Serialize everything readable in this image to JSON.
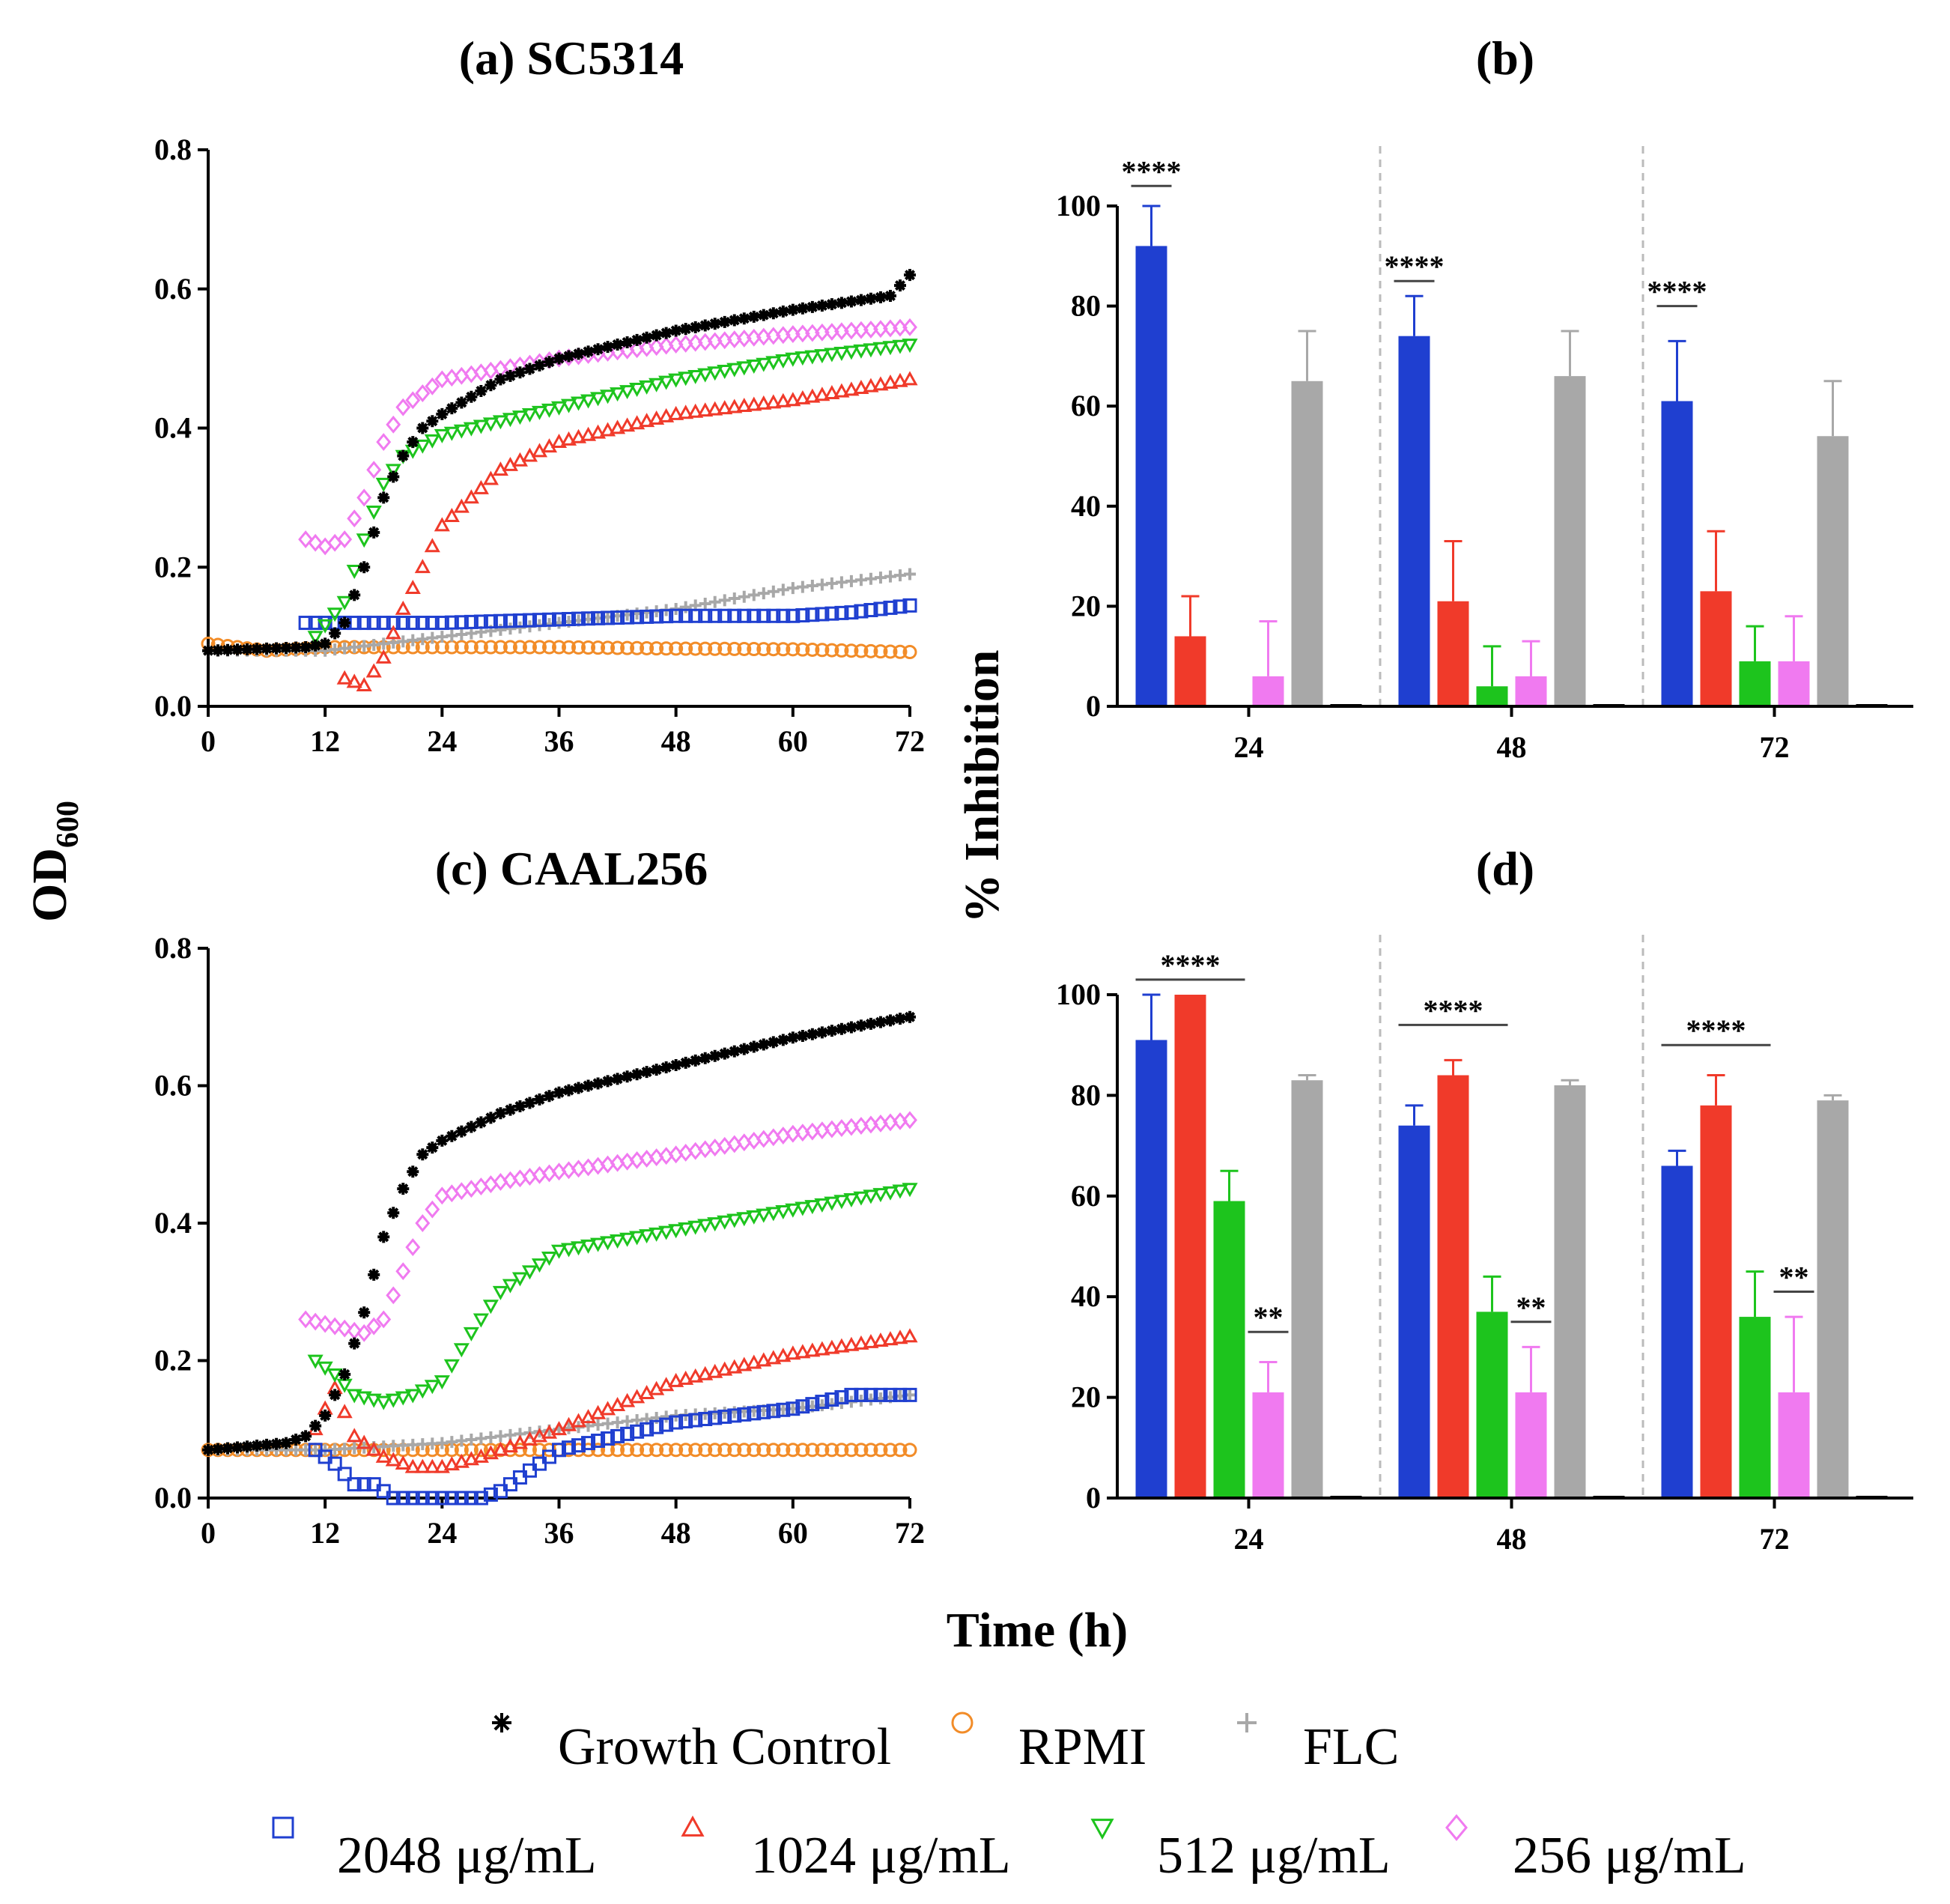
{
  "figure": {
    "shared_y_label_left": "OD",
    "shared_y_label_left_sub": "600",
    "shared_y_label_right": "% Inhibition",
    "shared_x_label": "Time (h)"
  },
  "legend": {
    "items": [
      {
        "key": "gc",
        "label": "Growth Control",
        "symbol": "*",
        "color": "#000000"
      },
      {
        "key": "rpmi",
        "label": "RPMI",
        "symbol": "circle",
        "color": "#F28C28"
      },
      {
        "key": "flc",
        "label": "FLC",
        "symbol": "plus",
        "color": "#A8A8A8"
      },
      {
        "key": "c2048",
        "label": "2048 μg/mL",
        "symbol": "square",
        "color": "#1F3FD0"
      },
      {
        "key": "c1024",
        "label": "1024 μg/mL",
        "symbol": "triangle",
        "color": "#F03A2A"
      },
      {
        "key": "c512",
        "label": "512 μg/mL",
        "symbol": "triangle-down",
        "color": "#1DC41D"
      },
      {
        "key": "c256",
        "label": "256 μg/mL",
        "symbol": "diamond",
        "color": "#F07AF0"
      }
    ]
  },
  "chart_data": [
    {
      "id": "a",
      "type": "scatter",
      "title": "(a) SC5314",
      "xlim": [
        0,
        72
      ],
      "ylim": [
        0,
        0.8
      ],
      "xticks": [
        "0",
        "12",
        "24",
        "36",
        "48",
        "60",
        "72"
      ],
      "yticks": [
        "0.0",
        "0.2",
        "0.4",
        "0.6",
        "0.8"
      ],
      "series": [
        {
          "key": "gc",
          "start": 0,
          "points": [
            [
              0,
              0.08
            ],
            [
              10,
              0.085
            ],
            [
              12,
              0.09
            ],
            [
              14,
              0.12
            ],
            [
              16,
              0.2
            ],
            [
              18,
              0.3
            ],
            [
              20,
              0.36
            ],
            [
              22,
              0.4
            ],
            [
              24,
              0.42
            ],
            [
              30,
              0.47
            ],
            [
              36,
              0.5
            ],
            [
              48,
              0.54
            ],
            [
              60,
              0.57
            ],
            [
              70,
              0.59
            ],
            [
              72,
              0.62
            ]
          ]
        },
        {
          "key": "rpmi",
          "start": 0,
          "points": [
            [
              0,
              0.09
            ],
            [
              6,
              0.08
            ],
            [
              12,
              0.085
            ],
            [
              24,
              0.085
            ],
            [
              36,
              0.085
            ],
            [
              48,
              0.083
            ],
            [
              60,
              0.082
            ],
            [
              72,
              0.078
            ]
          ]
        },
        {
          "key": "flc",
          "start": 0,
          "points": [
            [
              0,
              0.08
            ],
            [
              12,
              0.08
            ],
            [
              24,
              0.1
            ],
            [
              36,
              0.12
            ],
            [
              48,
              0.14
            ],
            [
              60,
              0.17
            ],
            [
              72,
              0.19
            ]
          ]
        },
        {
          "key": "c2048",
          "start": 10,
          "points": [
            [
              10,
              0.12
            ],
            [
              14,
              0.12
            ],
            [
              24,
              0.12
            ],
            [
              36,
              0.125
            ],
            [
              48,
              0.13
            ],
            [
              60,
              0.13
            ],
            [
              66,
              0.135
            ],
            [
              72,
              0.145
            ]
          ]
        },
        {
          "key": "c1024",
          "start": 14,
          "points": [
            [
              14,
              0.04
            ],
            [
              16,
              0.03
            ],
            [
              18,
              0.07
            ],
            [
              20,
              0.14
            ],
            [
              22,
              0.2
            ],
            [
              24,
              0.26
            ],
            [
              30,
              0.34
            ],
            [
              36,
              0.38
            ],
            [
              48,
              0.42
            ],
            [
              60,
              0.44
            ],
            [
              72,
              0.47
            ]
          ]
        },
        {
          "key": "c512",
          "start": 11,
          "points": [
            [
              11,
              0.1
            ],
            [
              14,
              0.15
            ],
            [
              16,
              0.24
            ],
            [
              18,
              0.32
            ],
            [
              20,
              0.36
            ],
            [
              24,
              0.39
            ],
            [
              36,
              0.43
            ],
            [
              48,
              0.47
            ],
            [
              60,
              0.5
            ],
            [
              72,
              0.52
            ]
          ]
        },
        {
          "key": "c256",
          "start": 10,
          "points": [
            [
              10,
              0.24
            ],
            [
              12,
              0.23
            ],
            [
              14,
              0.24
            ],
            [
              16,
              0.3
            ],
            [
              18,
              0.38
            ],
            [
              20,
              0.43
            ],
            [
              24,
              0.47
            ],
            [
              36,
              0.5
            ],
            [
              48,
              0.52
            ],
            [
              60,
              0.535
            ],
            [
              72,
              0.545
            ]
          ]
        }
      ]
    },
    {
      "id": "b",
      "type": "bar",
      "title": "(b)",
      "categories": [
        "24",
        "48",
        "72"
      ],
      "ylim": [
        0,
        100
      ],
      "yticks": [
        "0",
        "20",
        "40",
        "60",
        "80",
        "100"
      ],
      "series": [
        {
          "key": "c2048",
          "values": [
            92,
            74,
            61
          ],
          "errors": [
            8,
            8,
            12
          ]
        },
        {
          "key": "c1024",
          "values": [
            14,
            21,
            23
          ],
          "errors": [
            8,
            12,
            12
          ]
        },
        {
          "key": "c512",
          "values": [
            0,
            4,
            9
          ],
          "errors": [
            0,
            8,
            7
          ]
        },
        {
          "key": "c256",
          "values": [
            6,
            6,
            9
          ],
          "errors": [
            11,
            7,
            9
          ]
        },
        {
          "key": "flc",
          "values": [
            65,
            66,
            54
          ],
          "errors": [
            10,
            9,
            11
          ]
        },
        {
          "key": "gc",
          "values": [
            0,
            0,
            0
          ],
          "errors": [
            0,
            0,
            0
          ]
        }
      ],
      "significance": [
        {
          "category": 0,
          "from": 0,
          "to": 0,
          "label": "****",
          "y": 104
        },
        {
          "category": 1,
          "from": 0,
          "to": 0,
          "label": "****",
          "y": 85
        },
        {
          "category": 2,
          "from": 0,
          "to": 0,
          "label": "****",
          "y": 80
        }
      ]
    },
    {
      "id": "c",
      "type": "scatter",
      "title": "(c) CAAL256",
      "xlim": [
        0,
        72
      ],
      "ylim": [
        0,
        0.8
      ],
      "xticks": [
        "0",
        "12",
        "24",
        "36",
        "48",
        "60",
        "72"
      ],
      "yticks": [
        "0.0",
        "0.2",
        "0.4",
        "0.6",
        "0.8"
      ],
      "series": [
        {
          "key": "gc",
          "start": 0,
          "points": [
            [
              0,
              0.07
            ],
            [
              8,
              0.08
            ],
            [
              10,
              0.09
            ],
            [
              12,
              0.12
            ],
            [
              14,
              0.18
            ],
            [
              16,
              0.27
            ],
            [
              18,
              0.38
            ],
            [
              20,
              0.45
            ],
            [
              22,
              0.5
            ],
            [
              24,
              0.52
            ],
            [
              30,
              0.56
            ],
            [
              36,
              0.59
            ],
            [
              48,
              0.63
            ],
            [
              60,
              0.67
            ],
            [
              72,
              0.7
            ]
          ]
        },
        {
          "key": "rpmi",
          "start": 0,
          "points": [
            [
              0,
              0.07
            ],
            [
              12,
              0.07
            ],
            [
              24,
              0.07
            ],
            [
              36,
              0.07
            ],
            [
              48,
              0.07
            ],
            [
              60,
              0.07
            ],
            [
              72,
              0.07
            ]
          ]
        },
        {
          "key": "flc",
          "start": 0,
          "points": [
            [
              0,
              0.07
            ],
            [
              12,
              0.07
            ],
            [
              24,
              0.08
            ],
            [
              36,
              0.1
            ],
            [
              48,
              0.12
            ],
            [
              60,
              0.13
            ],
            [
              72,
              0.15
            ]
          ]
        },
        {
          "key": "c2048",
          "start": 11,
          "points": [
            [
              11,
              0.07
            ],
            [
              13,
              0.05
            ],
            [
              15,
              0.02
            ],
            [
              17,
              0.02
            ],
            [
              19,
              0.0
            ],
            [
              22,
              0.0
            ],
            [
              26,
              0.0
            ],
            [
              28,
              0.0
            ],
            [
              30,
              0.01
            ],
            [
              33,
              0.04
            ],
            [
              36,
              0.07
            ],
            [
              42,
              0.09
            ],
            [
              48,
              0.11
            ],
            [
              60,
              0.13
            ],
            [
              66,
              0.15
            ],
            [
              72,
              0.15
            ]
          ]
        },
        {
          "key": "c1024",
          "start": 11,
          "points": [
            [
              11,
              0.1
            ],
            [
              13,
              0.16
            ],
            [
              15,
              0.09
            ],
            [
              18,
              0.06
            ],
            [
              21,
              0.045
            ],
            [
              24,
              0.045
            ],
            [
              28,
              0.06
            ],
            [
              32,
              0.08
            ],
            [
              36,
              0.1
            ],
            [
              48,
              0.17
            ],
            [
              60,
              0.21
            ],
            [
              72,
              0.235
            ]
          ]
        },
        {
          "key": "c512",
          "start": 11,
          "points": [
            [
              11,
              0.2
            ],
            [
              13,
              0.18
            ],
            [
              15,
              0.15
            ],
            [
              18,
              0.14
            ],
            [
              21,
              0.15
            ],
            [
              24,
              0.17
            ],
            [
              27,
              0.24
            ],
            [
              30,
              0.3
            ],
            [
              36,
              0.36
            ],
            [
              48,
              0.39
            ],
            [
              60,
              0.42
            ],
            [
              72,
              0.45
            ]
          ]
        },
        {
          "key": "c256",
          "start": 10,
          "points": [
            [
              10,
              0.26
            ],
            [
              13,
              0.25
            ],
            [
              16,
              0.24
            ],
            [
              18,
              0.26
            ],
            [
              20,
              0.33
            ],
            [
              22,
              0.4
            ],
            [
              24,
              0.44
            ],
            [
              30,
              0.46
            ],
            [
              36,
              0.475
            ],
            [
              48,
              0.5
            ],
            [
              60,
              0.53
            ],
            [
              72,
              0.55
            ]
          ]
        }
      ]
    },
    {
      "id": "d",
      "type": "bar",
      "title": "(d)",
      "categories": [
        "24",
        "48",
        "72"
      ],
      "ylim": [
        0,
        100
      ],
      "yticks": [
        "0",
        "20",
        "40",
        "60",
        "80",
        "100"
      ],
      "series": [
        {
          "key": "c2048",
          "values": [
            91,
            74,
            66
          ],
          "errors": [
            9,
            4,
            3
          ]
        },
        {
          "key": "c1024",
          "values": [
            100,
            84,
            78
          ],
          "errors": [
            0,
            3,
            6
          ]
        },
        {
          "key": "c512",
          "values": [
            59,
            37,
            36
          ],
          "errors": [
            6,
            7,
            9
          ]
        },
        {
          "key": "c256",
          "values": [
            21,
            21,
            21
          ],
          "errors": [
            6,
            9,
            15
          ]
        },
        {
          "key": "flc",
          "values": [
            83,
            82,
            79
          ],
          "errors": [
            1,
            1,
            1
          ]
        },
        {
          "key": "gc",
          "values": [
            0,
            0,
            0
          ],
          "errors": [
            0,
            0,
            0
          ]
        }
      ],
      "significance": [
        {
          "category": 0,
          "from": 0,
          "to": 2,
          "label": "****",
          "y": 103
        },
        {
          "category": 1,
          "from": 0,
          "to": 2,
          "label": "****",
          "y": 94
        },
        {
          "category": 2,
          "from": 0,
          "to": 2,
          "label": "****",
          "y": 90
        },
        {
          "category": 0,
          "from": 3,
          "to": 3,
          "label": "**",
          "y": 33
        },
        {
          "category": 1,
          "from": 3,
          "to": 3,
          "label": "**",
          "y": 35
        },
        {
          "category": 2,
          "from": 3,
          "to": 3,
          "label": "**",
          "y": 41
        }
      ]
    }
  ]
}
